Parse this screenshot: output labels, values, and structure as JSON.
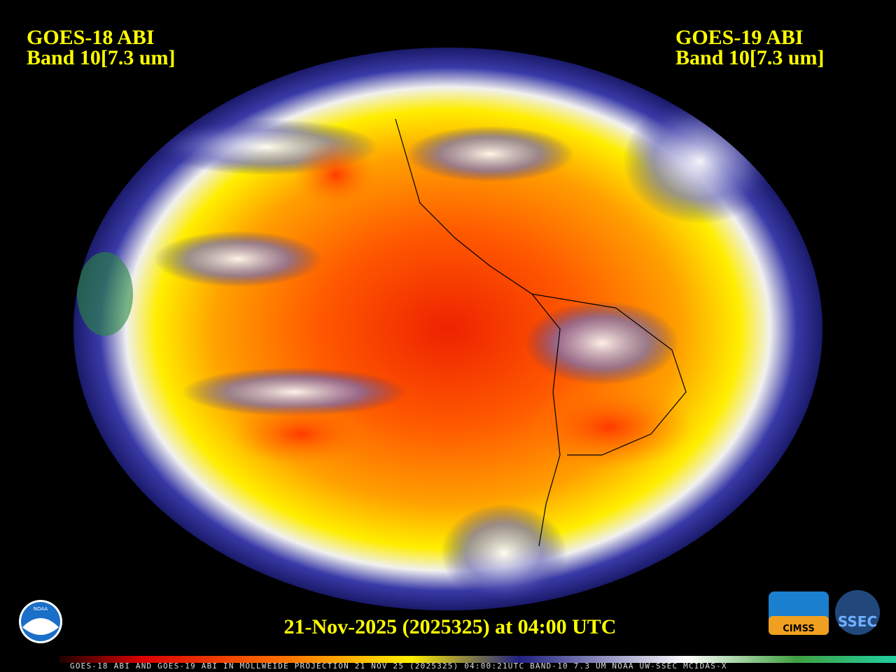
{
  "header": {
    "left": [
      "GOES-18 ABI",
      "Band 10[7.3 um]"
    ],
    "right": [
      "GOES-19 ABI",
      "Band 10[7.3 um]"
    ]
  },
  "timestamp": "21-Nov-2025 (2025325) at 04:00 UTC",
  "footer": "GOES-18 ABI AND GOES-19 ABI IN MOLLWEIDE PROJECTION 21 NOV 25 (2025325) 04:00:21UTC BAND-10 7.3 UM NOAA UW-SSEC MCIDAS-X",
  "logos": {
    "noaa": "NOAA",
    "cimss": "CIMSS",
    "ssec": "SSEC"
  }
}
